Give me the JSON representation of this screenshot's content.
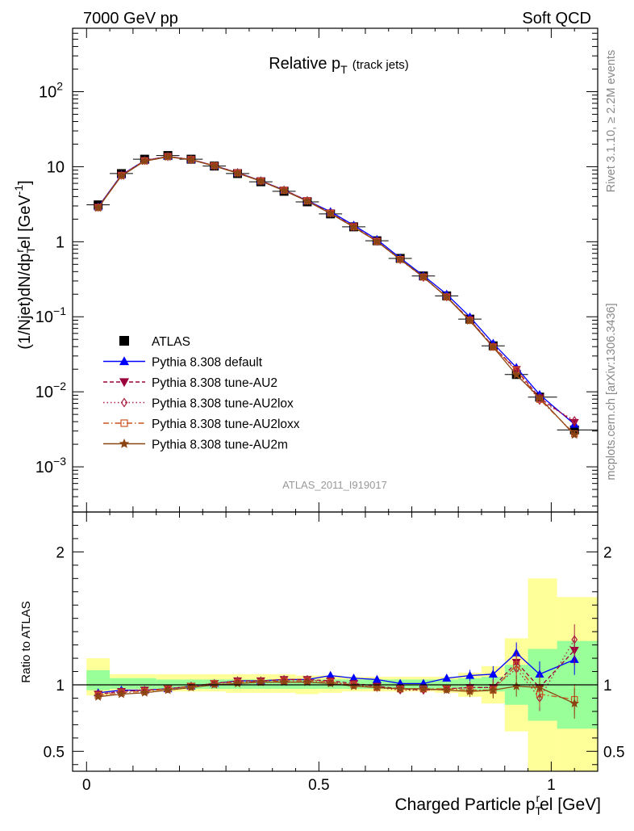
{
  "header": {
    "energy": "7000 GeV pp",
    "category": "Soft QCD"
  },
  "side_labels": {
    "rivet": "Rivet 3.1.10, ≥ 2.2M events",
    "mcplots": "mcplots.cern.ch [arXiv:1306.3436]"
  },
  "chart_data": {
    "type": "line",
    "title": "Relative p",
    "title_sub": "T",
    "title_suffix": "(track jets)",
    "analysis": "ATLAS_2011_I919017",
    "ylabel": "(1/Njet)dN/dp",
    "ylabel_sub": "T",
    "ylabel_sup": "r",
    "ylabel_tail": "el [GeV",
    "ylabel_exp": "-1",
    "ylabel_close": "]",
    "ratio_ylabel": "Ratio to ATLAS",
    "xlabel": "Charged Particle p",
    "xlabel_sub": "T",
    "xlabel_sup": "r",
    "xlabel_tail": "el [GeV]",
    "xlim": [
      -0.03,
      1.1
    ],
    "ylim": [
      0.00025,
      700
    ],
    "yscale": "log",
    "ratio_ylim": [
      0.35,
      2.3
    ],
    "x_ticks": [
      "0",
      "0.5",
      "1"
    ],
    "y_ticks": [
      {
        "base": "10",
        "exp": "−3"
      },
      {
        "base": "10",
        "exp": "−2"
      },
      {
        "base": "10",
        "exp": "−1"
      },
      {
        "base": "1",
        "exp": ""
      },
      {
        "base": "10",
        "exp": ""
      },
      {
        "base": "10",
        "exp": "2"
      }
    ],
    "ratio_ticks": [
      "0.5",
      "1",
      "2"
    ],
    "legend_position": "bottom-left",
    "x": [
      0.025,
      0.075,
      0.125,
      0.175,
      0.225,
      0.275,
      0.325,
      0.375,
      0.425,
      0.475,
      0.525,
      0.575,
      0.625,
      0.675,
      0.725,
      0.775,
      0.825,
      0.875,
      0.925,
      0.975,
      1.05
    ],
    "data": {
      "name": "ATLAS",
      "values": [
        3.1,
        8.1,
        12.6,
        14.1,
        12.6,
        10.2,
        8.1,
        6.3,
        4.7,
        3.4,
        2.35,
        1.58,
        1.03,
        0.6,
        0.35,
        0.19,
        0.093,
        0.041,
        0.017,
        0.0085,
        0.0031
      ],
      "band_inner": [
        [
          0.96,
          1.11
        ],
        [
          0.97,
          1.05
        ],
        [
          0.97,
          1.05
        ],
        [
          0.97,
          1.04
        ],
        [
          0.97,
          1.04
        ],
        [
          0.97,
          1.04
        ],
        [
          0.97,
          1.04
        ],
        [
          0.97,
          1.04
        ],
        [
          0.97,
          1.04
        ],
        [
          0.97,
          1.04
        ],
        [
          0.97,
          1.04
        ],
        [
          0.97,
          1.04
        ],
        [
          0.97,
          1.04
        ],
        [
          0.97,
          1.04
        ],
        [
          0.97,
          1.04
        ],
        [
          0.97,
          1.04
        ],
        [
          0.96,
          1.05
        ],
        [
          0.95,
          1.06
        ],
        [
          0.85,
          1.15
        ],
        [
          0.73,
          1.27
        ],
        [
          0.67,
          1.33
        ]
      ],
      "band_outer": [
        [
          0.92,
          1.2
        ],
        [
          0.95,
          1.08
        ],
        [
          0.95,
          1.08
        ],
        [
          0.95,
          1.08
        ],
        [
          0.95,
          1.08
        ],
        [
          0.95,
          1.08
        ],
        [
          0.94,
          1.08
        ],
        [
          0.94,
          1.08
        ],
        [
          0.94,
          1.08
        ],
        [
          0.93,
          1.07
        ],
        [
          0.94,
          1.07
        ],
        [
          0.95,
          1.06
        ],
        [
          0.95,
          1.06
        ],
        [
          0.95,
          1.06
        ],
        [
          0.95,
          1.06
        ],
        [
          0.94,
          1.06
        ],
        [
          0.91,
          1.09
        ],
        [
          0.86,
          1.14
        ],
        [
          0.65,
          1.35
        ],
        [
          0.35,
          1.8
        ],
        [
          0.35,
          1.66
        ]
      ]
    },
    "series": [
      {
        "name": "Pythia 8.308 default",
        "color": "#0000ff",
        "dash": "",
        "marker": "triangle-up",
        "filled": true,
        "ratio": [
          0.94,
          0.96,
          0.96,
          0.97,
          0.99,
          1.01,
          1.03,
          1.03,
          1.04,
          1.04,
          1.07,
          1.05,
          1.04,
          1.01,
          1.01,
          1.05,
          1.07,
          1.08,
          1.24,
          1.08,
          1.19
        ]
      },
      {
        "name": "Pythia 8.308 tune-AU2",
        "color": "#9c003c",
        "dash": "5,3",
        "marker": "triangle-down",
        "filled": true,
        "ratio": [
          0.93,
          0.95,
          0.96,
          0.97,
          0.99,
          1.01,
          1.03,
          1.03,
          1.04,
          1.04,
          1.03,
          1.01,
          0.99,
          0.97,
          0.96,
          0.97,
          0.98,
          0.98,
          1.17,
          0.98,
          1.26
        ]
      },
      {
        "name": "Pythia 8.308 tune-AU2lox",
        "color": "#aa2244",
        "dash": "1.5,3",
        "marker": "diamond",
        "filled": false,
        "ratio": [
          0.93,
          0.95,
          0.96,
          0.97,
          0.99,
          1.01,
          1.03,
          1.03,
          1.04,
          1.04,
          1.02,
          1.0,
          0.98,
          0.96,
          0.96,
          0.97,
          0.98,
          0.98,
          1.12,
          0.9,
          1.34
        ]
      },
      {
        "name": "Pythia 8.308 tune-AU2loxx",
        "color": "#cc5522",
        "dash": "7,3,1.5,3",
        "marker": "square",
        "filled": false,
        "ratio": [
          0.92,
          0.94,
          0.95,
          0.97,
          0.99,
          1.01,
          1.02,
          1.02,
          1.03,
          1.03,
          1.02,
          1.0,
          0.98,
          0.97,
          0.97,
          0.97,
          0.96,
          0.96,
          1.15,
          0.93,
          0.89
        ]
      },
      {
        "name": "Pythia 8.308 tune-AU2m",
        "color": "#8b4513",
        "dash": "",
        "marker": "star",
        "filled": true,
        "ratio": [
          0.91,
          0.93,
          0.94,
          0.96,
          0.98,
          1.0,
          1.01,
          1.02,
          1.02,
          1.02,
          1.01,
          0.99,
          0.98,
          0.97,
          0.97,
          0.96,
          0.95,
          0.96,
          0.99,
          0.98,
          0.86
        ]
      }
    ]
  }
}
